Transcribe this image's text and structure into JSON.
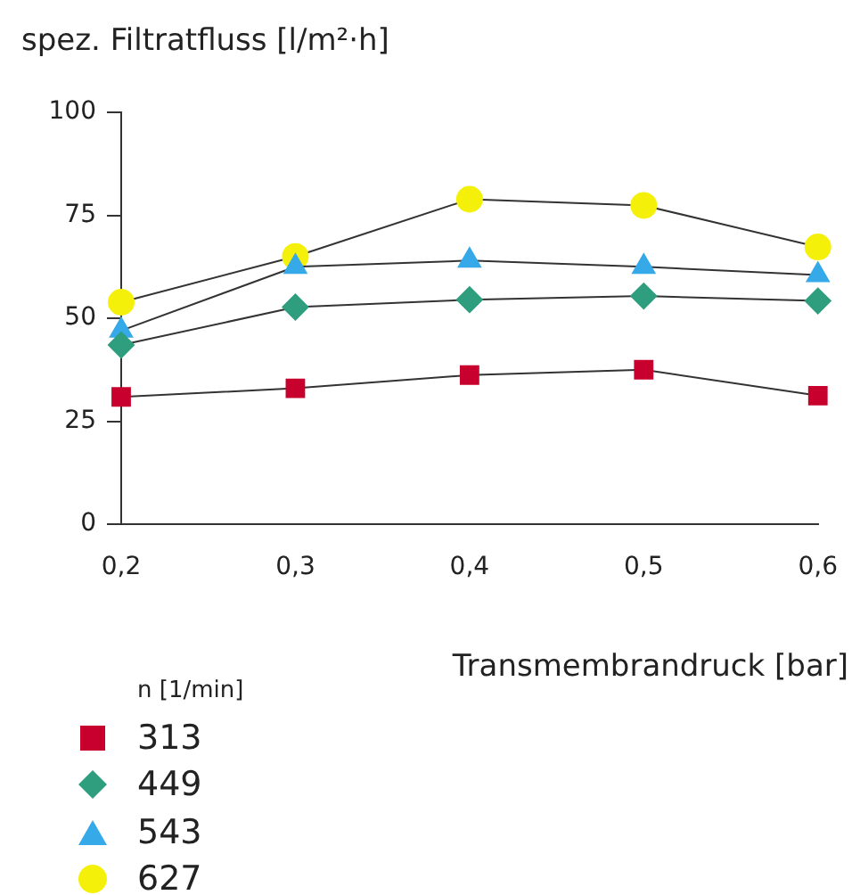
{
  "chart_data": {
    "type": "line",
    "ylabel": "spez. Filtratfluss [l/m²·h]",
    "xlabel": "Transmembrandruck [bar]",
    "legend_title": "n [1/min]",
    "legend": "bottom left",
    "grid": false,
    "x": [
      0.2,
      0.3,
      0.4,
      0.5,
      0.6
    ],
    "xlim": [
      0.2,
      0.6
    ],
    "xticks": [
      {
        "value": 0.2,
        "label": "0,2"
      },
      {
        "value": 0.3,
        "label": "0,3"
      },
      {
        "value": 0.4,
        "label": "0,4"
      },
      {
        "value": 0.5,
        "label": "0,5"
      },
      {
        "value": 0.6,
        "label": "0,6"
      }
    ],
    "ylim": [
      0,
      100
    ],
    "yticks": [
      0,
      25,
      50,
      75,
      100
    ],
    "series": [
      {
        "name": "313",
        "color": "#c8002d",
        "marker": "square",
        "values": [
          30.9,
          33,
          36.2,
          37.5,
          31.2
        ]
      },
      {
        "name": "449",
        "color": "#2e9e7e",
        "marker": "diamond",
        "values": [
          43.5,
          52.7,
          54.5,
          55.4,
          54.2
        ]
      },
      {
        "name": "543",
        "color": "#36a9e8",
        "marker": "triangle",
        "values": [
          47,
          62.5,
          64,
          62.5,
          60.5
        ]
      },
      {
        "name": "627",
        "color": "#f5f00a",
        "marker": "circle",
        "values": [
          53.9,
          65,
          78.9,
          77.4,
          67.3
        ]
      }
    ]
  }
}
